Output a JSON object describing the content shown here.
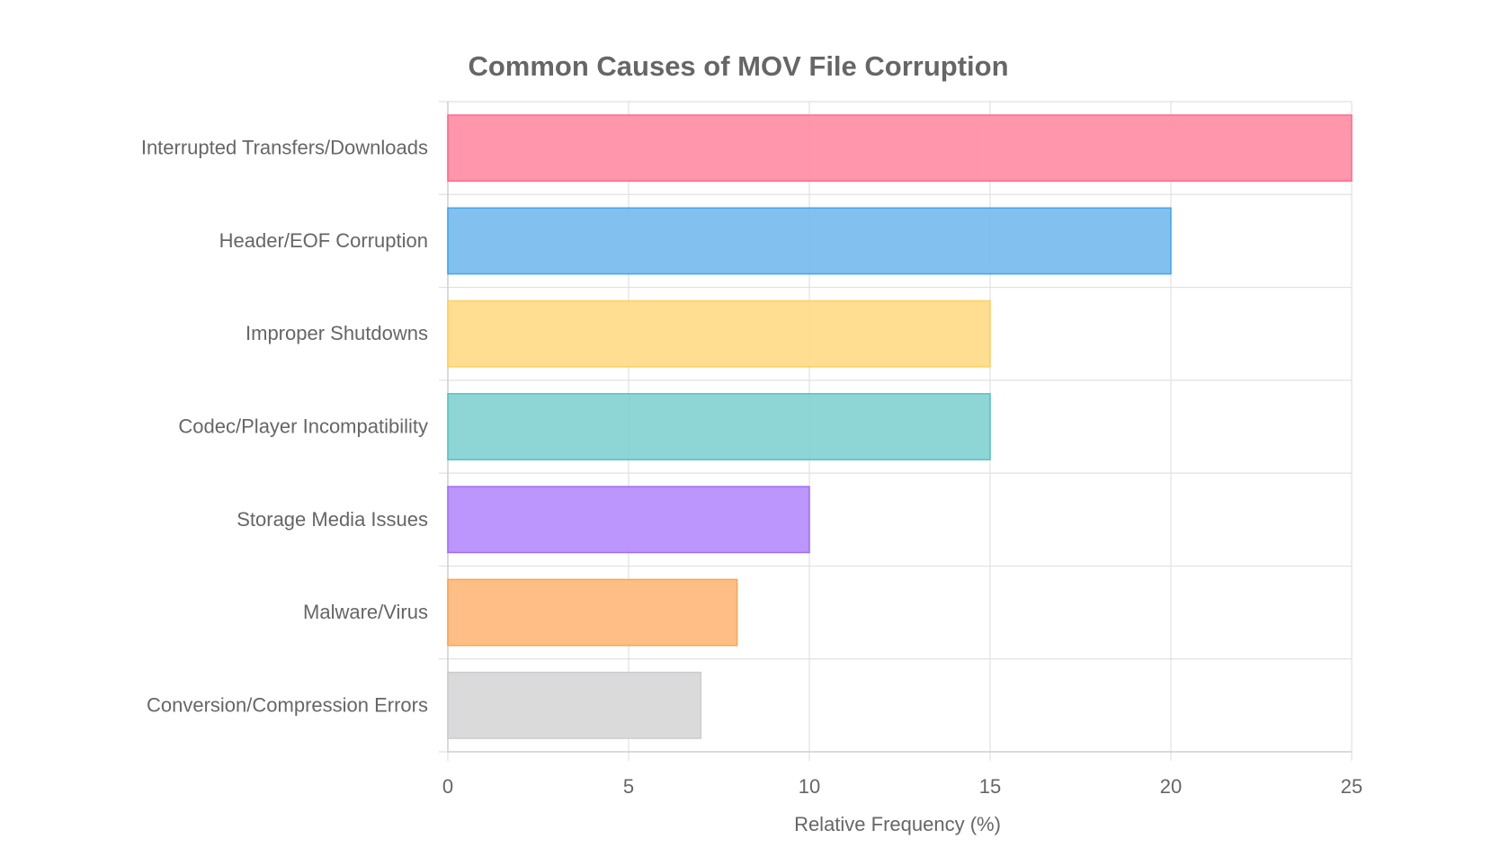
{
  "chart_data": {
    "type": "bar",
    "orientation": "horizontal",
    "title": "Common Causes of MOV File Corruption",
    "xlabel": "Relative Frequency (%)",
    "ylabel": "",
    "xlim": [
      0,
      25
    ],
    "xticks": [
      "0",
      "5",
      "10",
      "15",
      "20",
      "25"
    ],
    "grid": true,
    "categories": [
      "Interrupted Transfers/Downloads",
      "Header/EOF Corruption",
      "Improper Shutdowns",
      "Codec/Player Incompatibility",
      "Storage Media Issues",
      "Malware/Virus",
      "Conversion/Compression Errors"
    ],
    "values": [
      25,
      20,
      15,
      15,
      10,
      8,
      7
    ],
    "colors": [
      {
        "fill": "#ff91a8",
        "stroke": "#ff6384"
      },
      {
        "fill": "#7cbdf0",
        "stroke": "#36a2eb"
      },
      {
        "fill": "#ffdc8c",
        "stroke": "#ffce56"
      },
      {
        "fill": "#88d3d4",
        "stroke": "#4bc0c0"
      },
      {
        "fill": "#b990fd",
        "stroke": "#9966ff"
      },
      {
        "fill": "#ffbb80",
        "stroke": "#ff9f40"
      },
      {
        "fill": "#d9d9d9",
        "stroke": "#c9cbcf"
      }
    ]
  }
}
